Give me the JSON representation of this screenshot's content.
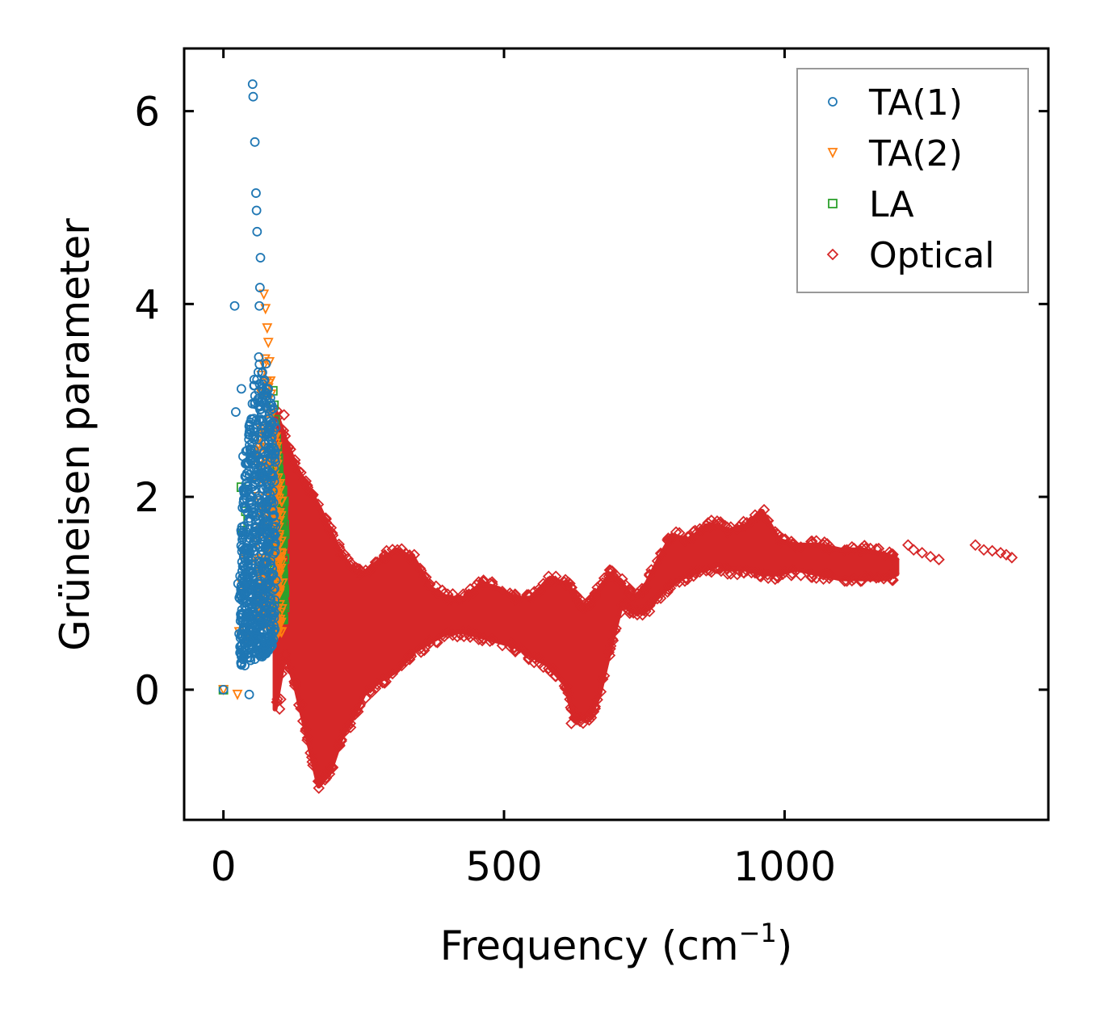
{
  "chart_data": {
    "type": "scatter",
    "title": "",
    "xlabel": "Frequency (cm",
    "xlabel_superscript": "−1",
    "xlabel_suffix": ")",
    "ylabel": "Grüneisen parameter",
    "xlim": [
      -70,
      1470
    ],
    "ylim": [
      -1.35,
      6.65
    ],
    "x_ticks": [
      0,
      500,
      1000
    ],
    "x_tick_labels": [
      "0",
      "500",
      "1000"
    ],
    "y_ticks": [
      0,
      2,
      4,
      6
    ],
    "y_tick_labels": [
      "0",
      "2",
      "4",
      "6"
    ],
    "grid": false,
    "legend_position": "top-right",
    "series": [
      {
        "name": "TA(1)",
        "color": "#1f77b4",
        "marker": "circle",
        "points": [
          [
            0,
            0
          ],
          [
            20,
            3.98
          ],
          [
            22,
            2.88
          ],
          [
            26,
            1.1
          ],
          [
            28,
            0.58
          ],
          [
            32,
            3.12
          ],
          [
            35,
            2.42
          ],
          [
            38,
            0.25
          ],
          [
            42,
            1.55
          ],
          [
            46,
            -0.05
          ],
          [
            48,
            2.0
          ],
          [
            50,
            1.2
          ],
          [
            52,
            6.28
          ],
          [
            53,
            6.15
          ],
          [
            56,
            5.68
          ],
          [
            58,
            5.15
          ],
          [
            59,
            4.97
          ],
          [
            60,
            4.75
          ],
          [
            63,
            3.45
          ],
          [
            64,
            3.98
          ],
          [
            65,
            4.17
          ],
          [
            66,
            4.48
          ],
          [
            68,
            2.7
          ],
          [
            70,
            1.9
          ],
          [
            72,
            3.1
          ],
          [
            74,
            2.3
          ],
          [
            76,
            3.38
          ],
          [
            78,
            1.5
          ],
          [
            80,
            2.65
          ],
          [
            82,
            1.2
          ],
          [
            84,
            0.8
          ],
          [
            86,
            2.95
          ]
        ],
        "dense_band": {
          "x_range": [
            30,
            92
          ],
          "lower": [
            0.25,
            0.28,
            0.3,
            0.32,
            0.35,
            0.4,
            0.45
          ],
          "upper": [
            1.4,
            2.5,
            3.0,
            3.4,
            3.3,
            3.1,
            2.9
          ]
        }
      },
      {
        "name": "TA(2)",
        "color": "#ff7f0e",
        "marker": "triangle-down",
        "points": [
          [
            0,
            0
          ],
          [
            25,
            -0.05
          ],
          [
            28,
            0.6
          ],
          [
            32,
            1.1
          ],
          [
            36,
            1.4
          ],
          [
            40,
            0.55
          ],
          [
            55,
            1.6
          ],
          [
            65,
            2.2
          ],
          [
            72,
            4.1
          ],
          [
            75,
            3.95
          ],
          [
            78,
            3.75
          ],
          [
            80,
            3.6
          ],
          [
            82,
            3.4
          ],
          [
            84,
            3.2
          ],
          [
            86,
            2.9
          ],
          [
            88,
            2.6
          ],
          [
            90,
            2.3
          ],
          [
            92,
            2.0
          ],
          [
            95,
            1.7
          ],
          [
            98,
            1.3
          ],
          [
            100,
            1.0
          ],
          [
            102,
            0.8
          ],
          [
            104,
            0.6
          ],
          [
            88,
            0.5
          ],
          [
            92,
            0.7
          ]
        ],
        "dense_band": {
          "x_range": [
            60,
            105
          ],
          "lower": [
            0.8,
            0.7,
            0.6,
            0.55,
            0.6
          ],
          "upper": [
            2.4,
            3.6,
            3.2,
            2.6,
            2.0
          ]
        }
      },
      {
        "name": "LA",
        "color": "#2ca02c",
        "marker": "square",
        "points": [
          [
            0,
            0
          ],
          [
            32,
            2.1
          ],
          [
            34,
            1.65
          ],
          [
            40,
            1.85
          ],
          [
            44,
            1.75
          ],
          [
            88,
            3.1
          ],
          [
            90,
            2.95
          ],
          [
            92,
            2.8
          ],
          [
            94,
            2.6
          ],
          [
            96,
            2.5
          ],
          [
            98,
            2.4
          ],
          [
            100,
            2.2
          ],
          [
            102,
            2.0
          ],
          [
            103,
            1.5
          ],
          [
            104,
            1.1
          ],
          [
            105,
            0.9
          ],
          [
            106,
            0.75
          ],
          [
            96,
            1.2
          ],
          [
            100,
            1.6
          ]
        ],
        "dense_band": {
          "x_range": [
            90,
            108
          ],
          "lower": [
            0.9,
            0.8,
            0.7
          ],
          "upper": [
            2.6,
            2.3,
            2.0
          ]
        }
      },
      {
        "name": "Optical",
        "color": "#d62728",
        "marker": "diamond",
        "band": {
          "x": [
            92,
            110,
            130,
            150,
            170,
            190,
            210,
            230,
            250,
            280,
            310,
            340,
            370,
            400,
            430,
            460,
            490,
            520,
            550,
            580,
            610,
            625,
            640,
            655,
            670,
            690,
            710,
            730,
            750,
            780,
            800,
            830,
            860,
            880,
            900,
            930,
            960,
            990,
            1020,
            1060,
            1100,
            1140,
            1180,
            1200
          ],
          "lower": [
            -0.2,
            0.4,
            0.0,
            -0.5,
            -1.0,
            -0.85,
            -0.5,
            -0.3,
            -0.05,
            0.1,
            0.2,
            0.4,
            0.5,
            0.6,
            0.6,
            0.55,
            0.5,
            0.45,
            0.35,
            0.25,
            0.05,
            -0.3,
            -0.3,
            -0.25,
            -0.05,
            0.45,
            0.9,
            0.8,
            0.8,
            1.0,
            1.1,
            1.2,
            1.25,
            1.3,
            1.25,
            1.25,
            1.2,
            1.2,
            1.25,
            1.2,
            1.15,
            1.15,
            1.15,
            1.2
          ],
          "upper": [
            2.9,
            2.6,
            2.3,
            2.1,
            1.9,
            1.65,
            1.4,
            1.25,
            1.2,
            1.35,
            1.45,
            1.35,
            1.05,
            0.95,
            0.95,
            1.1,
            1.05,
            0.95,
            0.95,
            1.15,
            1.1,
            1.0,
            0.85,
            0.9,
            1.05,
            1.2,
            1.1,
            0.95,
            1.05,
            1.4,
            1.6,
            1.55,
            1.7,
            1.7,
            1.65,
            1.7,
            1.85,
            1.55,
            1.5,
            1.5,
            1.45,
            1.45,
            1.4,
            1.35
          ]
        },
        "points": [
          [
            170,
            -1.02
          ],
          [
            172,
            -0.95
          ],
          [
            175,
            -0.88
          ],
          [
            140,
            -0.15
          ],
          [
            100,
            -0.2
          ],
          [
            102,
            -0.1
          ],
          [
            108,
            2.85
          ],
          [
            310,
            1.45
          ],
          [
            340,
            1.4
          ],
          [
            620,
            -0.35
          ],
          [
            648,
            -0.3
          ],
          [
            1220,
            1.5
          ],
          [
            1230,
            1.45
          ],
          [
            1245,
            1.42
          ],
          [
            1260,
            1.38
          ],
          [
            1275,
            1.35
          ],
          [
            1340,
            1.5
          ],
          [
            1355,
            1.45
          ],
          [
            1370,
            1.44
          ],
          [
            1385,
            1.42
          ],
          [
            1395,
            1.4
          ],
          [
            1405,
            1.37
          ]
        ]
      }
    ]
  }
}
